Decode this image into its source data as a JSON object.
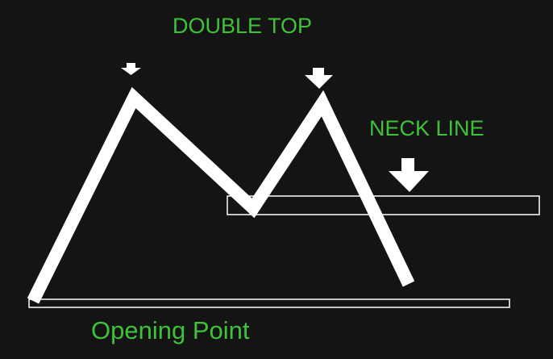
{
  "title": "DOUBLE TOP",
  "neck_line": {
    "label": "NECK LINE"
  },
  "opening_point": {
    "label": "Opening Point"
  },
  "colors": {
    "background": "#141414",
    "text": "#3fc23a",
    "line": "#ffffff"
  },
  "icons": {
    "first_top_marker": "arrow-down-icon",
    "second_top_marker": "arrow-down-icon",
    "neck_line_marker": "arrow-down-icon"
  }
}
